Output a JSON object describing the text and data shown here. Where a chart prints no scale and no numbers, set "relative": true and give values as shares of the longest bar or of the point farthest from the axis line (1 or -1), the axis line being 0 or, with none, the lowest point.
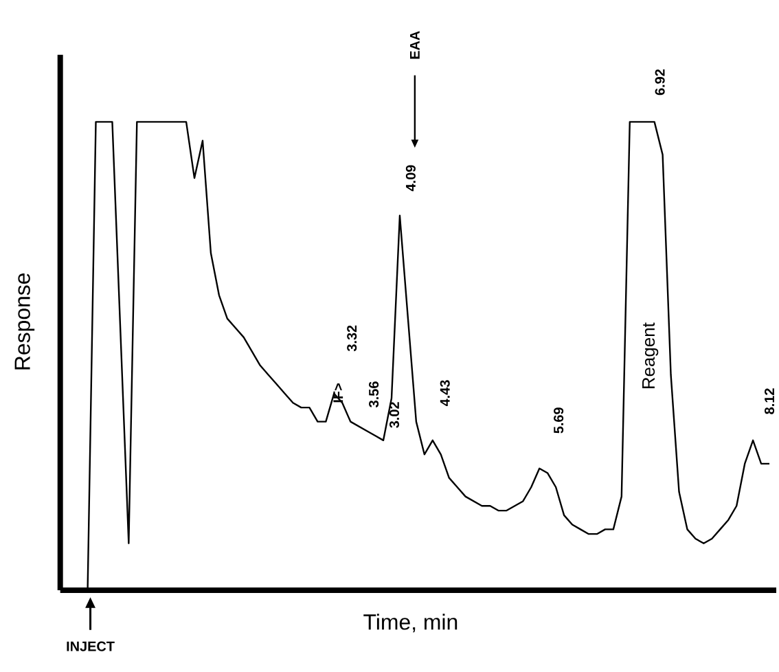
{
  "chart_data": {
    "type": "line",
    "relative": true,
    "xlabel": "Time, min",
    "ylabel": "Response",
    "color": "#000000",
    "categories": [
      null,
      null,
      null,
      null,
      null,
      null,
      null,
      null,
      null,
      null,
      null,
      null,
      null,
      null,
      null,
      null,
      null,
      null,
      null,
      null,
      null,
      null,
      null,
      null,
      null,
      null,
      null,
      null,
      null,
      null,
      null,
      null,
      null,
      null,
      null,
      null,
      null,
      null,
      null,
      null,
      null,
      null,
      null,
      null,
      null,
      null,
      null,
      null,
      null,
      null,
      null,
      null,
      null,
      null,
      null,
      null,
      null,
      null,
      null,
      null,
      null,
      null,
      null,
      null,
      null,
      null,
      null,
      null,
      null,
      null,
      null,
      null,
      null,
      null,
      null,
      null,
      null,
      null,
      null,
      null,
      null,
      null,
      null,
      null
    ],
    "values": [
      0,
      1.0,
      1.0,
      1.0,
      0.55,
      0.1,
      1.0,
      1.0,
      1.0,
      1.0,
      1.0,
      1.0,
      1.0,
      0.88,
      0.96,
      0.72,
      0.63,
      0.58,
      0.56,
      0.54,
      0.51,
      0.48,
      0.46,
      0.44,
      0.42,
      0.4,
      0.39,
      0.39,
      0.36,
      0.36,
      0.42,
      0.4,
      0.36,
      0.35,
      0.34,
      0.33,
      0.32,
      0.41,
      0.8,
      0.58,
      0.36,
      0.29,
      0.32,
      0.29,
      0.24,
      0.22,
      0.2,
      0.19,
      0.18,
      0.18,
      0.17,
      0.17,
      0.18,
      0.19,
      0.22,
      0.26,
      0.25,
      0.22,
      0.16,
      0.14,
      0.13,
      0.12,
      0.12,
      0.13,
      0.13,
      0.2,
      1.0,
      1.0,
      1.0,
      1.0,
      0.93,
      0.46,
      0.21,
      0.13,
      0.11,
      0.1,
      0.11,
      0.13,
      0.15,
      0.18,
      0.27,
      0.32,
      0.27,
      0.27
    ],
    "annotations": [
      "INJECT",
      "EAA",
      "4.09",
      "6.92",
      "Reagent",
      "3.32",
      "IF>",
      "3.56",
      "3.02",
      "4.43",
      "5.69",
      "8.12"
    ]
  }
}
